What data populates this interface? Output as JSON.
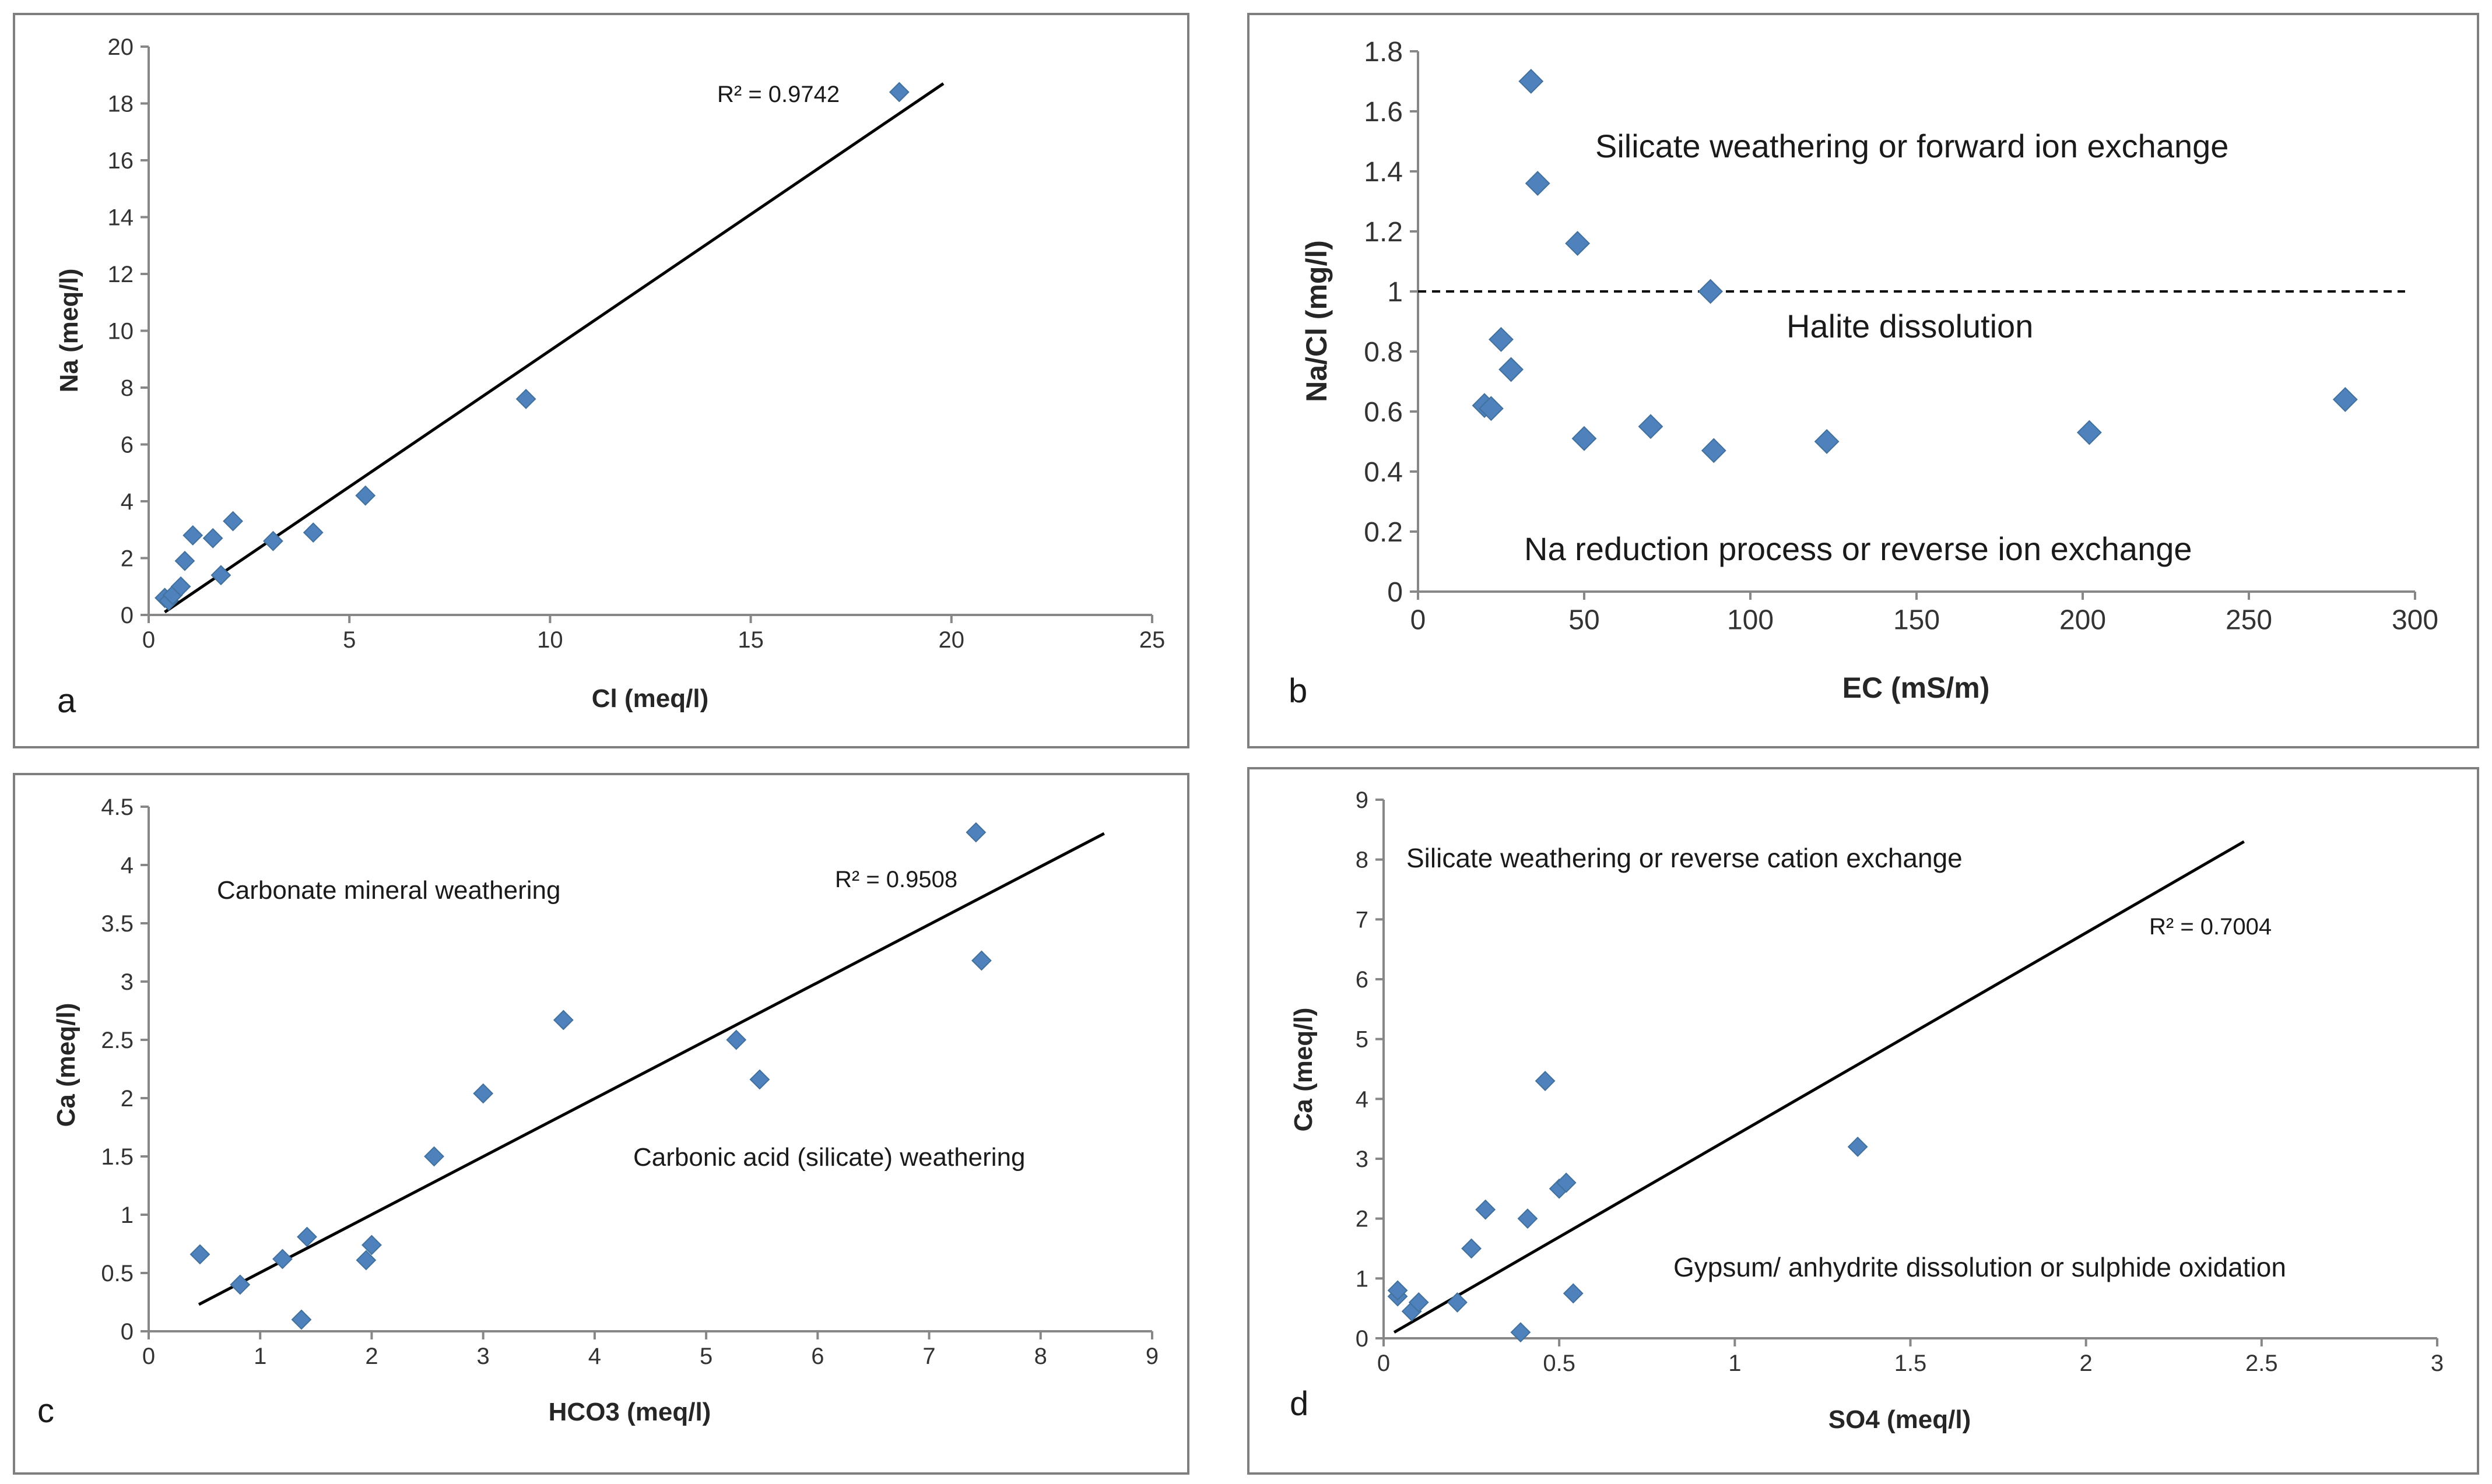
{
  "colors": {
    "marker": "#4f81bd",
    "marker_edge": "#41719c",
    "axis": "#878787",
    "frame": "#7f7f7f",
    "trendline": "#000000"
  },
  "chart_data": [
    {
      "panel": "a",
      "type": "scatter",
      "xlabel": "Cl (meq/l)",
      "ylabel": "Na (meq/l)",
      "xlim": [
        0,
        25
      ],
      "ylim": [
        0,
        20
      ],
      "xticks": [
        0,
        5,
        10,
        15,
        20,
        25
      ],
      "yticks": [
        0,
        2,
        4,
        6,
        8,
        10,
        12,
        14,
        16,
        18,
        20
      ],
      "points": [
        [
          0.4,
          0.6
        ],
        [
          0.5,
          0.5
        ],
        [
          0.6,
          0.7
        ],
        [
          0.8,
          1.0
        ],
        [
          0.9,
          1.9
        ],
        [
          1.1,
          2.8
        ],
        [
          1.6,
          2.7
        ],
        [
          1.8,
          1.4
        ],
        [
          2.1,
          3.3
        ],
        [
          3.1,
          2.6
        ],
        [
          4.1,
          2.9
        ],
        [
          5.4,
          4.2
        ],
        [
          9.4,
          7.6
        ],
        [
          18.7,
          18.4
        ]
      ],
      "trendline": [
        [
          0.4,
          0.1
        ],
        [
          19.8,
          18.7
        ]
      ],
      "annotations": [
        {
          "text": "R² = 0.9742",
          "x": 16.3,
          "y": 18.2
        }
      ]
    },
    {
      "panel": "b",
      "type": "scatter",
      "xlabel": "EC (mS/m)",
      "ylabel": "Na/Cl (mg/l)",
      "xlim": [
        0,
        300
      ],
      "ylim": [
        0,
        1.8
      ],
      "xticks": [
        0,
        50,
        100,
        150,
        200,
        250,
        300
      ],
      "yticks": [
        0,
        0.2,
        0.4,
        0.6,
        0.8,
        1,
        1.2,
        1.4,
        1.6,
        1.8
      ],
      "points": [
        [
          20,
          0.62
        ],
        [
          22,
          0.61
        ],
        [
          25,
          0.84
        ],
        [
          28,
          0.74
        ],
        [
          34,
          1.7
        ],
        [
          36,
          1.36
        ],
        [
          48,
          1.16
        ],
        [
          50,
          0.51
        ],
        [
          70,
          0.55
        ],
        [
          88,
          1.0
        ],
        [
          89,
          0.47
        ],
        [
          123,
          0.5
        ],
        [
          202,
          0.53
        ],
        [
          279,
          0.64
        ]
      ],
      "reference_line": {
        "y": 1.0,
        "x": [
          0,
          297
        ],
        "style": "dashed"
      },
      "annotations": [
        {
          "text": "Silicate weathering or forward ion exchange",
          "x": 154,
          "y": 1.48
        },
        {
          "text": "Halite dissolution",
          "x": 150,
          "y": 0.87
        },
        {
          "text": "Na reduction process or reverse ion exchange",
          "x": 150,
          "y": 0.12
        }
      ]
    },
    {
      "panel": "c",
      "type": "scatter",
      "xlabel": "HCO3 (meq/l)",
      "ylabel": "Ca (meq/l)",
      "xlim": [
        0,
        9
      ],
      "ylim": [
        0,
        4.5
      ],
      "xticks": [
        0,
        1,
        2,
        3,
        4,
        5,
        6,
        7,
        8,
        9
      ],
      "yticks": [
        0,
        0.5,
        1,
        1.5,
        2,
        2.5,
        3,
        3.5,
        4,
        4.5
      ],
      "points": [
        [
          0.46,
          0.66
        ],
        [
          0.82,
          0.4
        ],
        [
          1.2,
          0.62
        ],
        [
          1.37,
          0.1
        ],
        [
          1.42,
          0.81
        ],
        [
          1.95,
          0.61
        ],
        [
          2.0,
          0.74
        ],
        [
          2.56,
          1.5
        ],
        [
          3.0,
          2.04
        ],
        [
          3.72,
          2.67
        ],
        [
          5.27,
          2.5
        ],
        [
          5.48,
          2.16
        ],
        [
          7.42,
          4.28
        ],
        [
          7.47,
          3.18
        ]
      ],
      "trendline": [
        [
          0.45,
          0.23
        ],
        [
          8.57,
          4.27
        ]
      ],
      "annotations": [
        {
          "text": "Carbonate mineral weathering",
          "x": 2.1,
          "y": 3.7
        },
        {
          "text": "R² = 0.9508",
          "x": 6.35,
          "y": 3.85
        },
        {
          "text": "Carbonic acid (silicate) weathering",
          "x": 5.9,
          "y": 1.45
        }
      ]
    },
    {
      "panel": "d",
      "type": "scatter",
      "xlabel": "SO4 (meq/l)",
      "ylabel": "Ca (meq/l)",
      "xlim": [
        0,
        3
      ],
      "ylim": [
        0,
        9
      ],
      "xticks": [
        0,
        0.5,
        1,
        1.5,
        2,
        2.5,
        3
      ],
      "yticks": [
        0,
        1,
        2,
        3,
        4,
        5,
        6,
        7,
        8,
        9
      ],
      "points": [
        [
          0.04,
          0.7
        ],
        [
          0.04,
          0.8
        ],
        [
          0.08,
          0.45
        ],
        [
          0.1,
          0.6
        ],
        [
          0.21,
          0.6
        ],
        [
          0.25,
          1.5
        ],
        [
          0.29,
          2.15
        ],
        [
          0.39,
          0.1
        ],
        [
          0.41,
          2.0
        ],
        [
          0.46,
          4.3
        ],
        [
          0.5,
          2.5
        ],
        [
          0.52,
          2.6
        ],
        [
          0.54,
          0.75
        ],
        [
          1.35,
          3.2
        ]
      ],
      "trendline": [
        [
          0.03,
          0.1
        ],
        [
          2.45,
          8.3
        ]
      ],
      "annotations": [
        {
          "text": "Silicate weathering or reverse cation exchange",
          "x": 0.07,
          "y": 7.95
        },
        {
          "text": "R² = 0.7004",
          "x": 2.38,
          "y": 6.7
        },
        {
          "text": "Gypsum/ anhydrite dissolution or sulphide oxidation",
          "x": 2.93,
          "y": 1.0
        }
      ]
    }
  ]
}
